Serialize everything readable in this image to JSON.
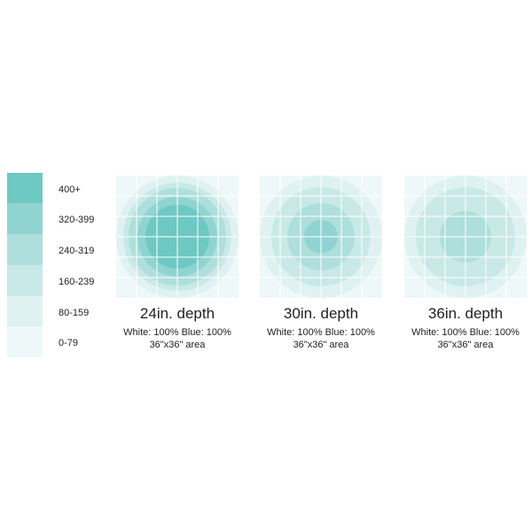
{
  "legend": {
    "items": [
      {
        "label": "400+",
        "color": "#6ec8c4"
      },
      {
        "label": "320-399",
        "color": "#90d4d1"
      },
      {
        "label": "240-319",
        "color": "#aedfdc"
      },
      {
        "label": "160-239",
        "color": "#c8e9e7"
      },
      {
        "label": "80-159",
        "color": "#dff2f1"
      },
      {
        "label": "0-79",
        "color": "#eef8f8"
      }
    ]
  },
  "panels": [
    {
      "title": "24in. depth",
      "line1": "White: 100% Blue: 100%",
      "line2": "36\"x36\" area",
      "rings": [
        6,
        5,
        4,
        3,
        2,
        1,
        0
      ]
    },
    {
      "title": "30in. depth",
      "line1": "White: 100% Blue: 100%",
      "line2": "36\"x36\" area",
      "rings": [
        5,
        4,
        3,
        2,
        1
      ]
    },
    {
      "title": "36in. depth",
      "line1": "White: 100% Blue: 100%",
      "line2": "36\"x36\" area",
      "rings": [
        5,
        4,
        3,
        2
      ]
    }
  ]
}
